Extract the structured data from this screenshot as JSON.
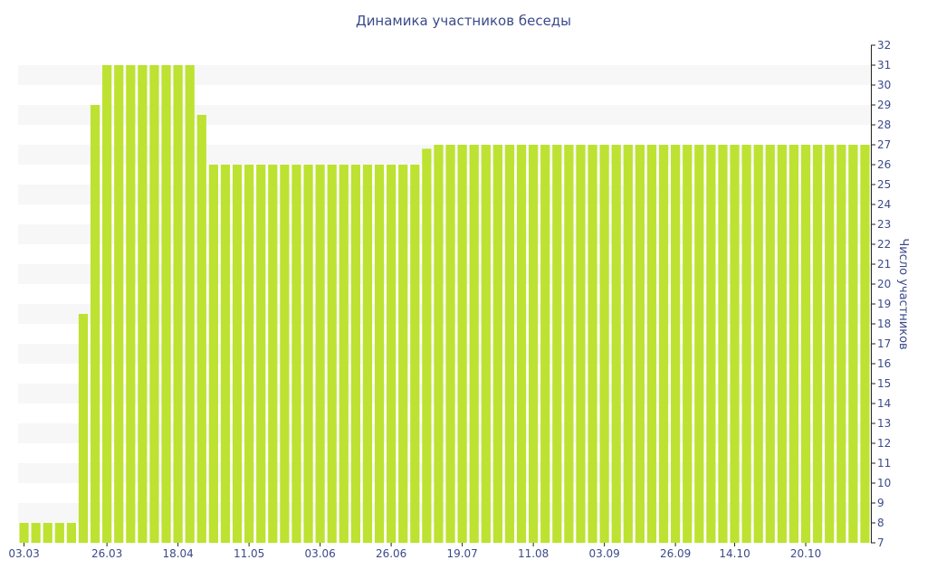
{
  "chart_data": {
    "type": "bar",
    "title": "Динамика участников беседы",
    "xlabel": "",
    "ylabel": "Число участников",
    "ylim": [
      7,
      32
    ],
    "y_ticks": [
      7,
      8,
      9,
      10,
      11,
      12,
      13,
      14,
      15,
      16,
      17,
      18,
      19,
      20,
      21,
      22,
      23,
      24,
      25,
      26,
      27,
      28,
      29,
      30,
      31,
      32
    ],
    "y_axis_position": "right",
    "grid": "horizontal-bands",
    "x_tick_labels": [
      {
        "label": "03.03",
        "index": 0
      },
      {
        "label": "26.03",
        "index": 7
      },
      {
        "label": "18.04",
        "index": 13
      },
      {
        "label": "11.05",
        "index": 19
      },
      {
        "label": "03.06",
        "index": 25
      },
      {
        "label": "26.06",
        "index": 31
      },
      {
        "label": "19.07",
        "index": 37
      },
      {
        "label": "11.08",
        "index": 43
      },
      {
        "label": "03.09",
        "index": 49
      },
      {
        "label": "26.09",
        "index": 55
      },
      {
        "label": "14.10",
        "index": 60
      },
      {
        "label": "20.10",
        "index": 66
      }
    ],
    "values": [
      8,
      8,
      8,
      8,
      8,
      18.5,
      29,
      31,
      31,
      31,
      31,
      31,
      31,
      31,
      31,
      28.5,
      26,
      26,
      26,
      26,
      26,
      26,
      26,
      26,
      26,
      26,
      26,
      26,
      26,
      26,
      26,
      26,
      26,
      26,
      26.8,
      27,
      27,
      27,
      27,
      27,
      27,
      27,
      27,
      27,
      27,
      27,
      27,
      27,
      27,
      27,
      27,
      27,
      27,
      27,
      27,
      27,
      27,
      27,
      27,
      27,
      27,
      27,
      27,
      27,
      27,
      27,
      27,
      27,
      27,
      27,
      27,
      27
    ],
    "colors": {
      "bar": "#bde231",
      "band": "#f7f7f7",
      "text": "#3b4a8a",
      "axis": "#222222"
    }
  }
}
